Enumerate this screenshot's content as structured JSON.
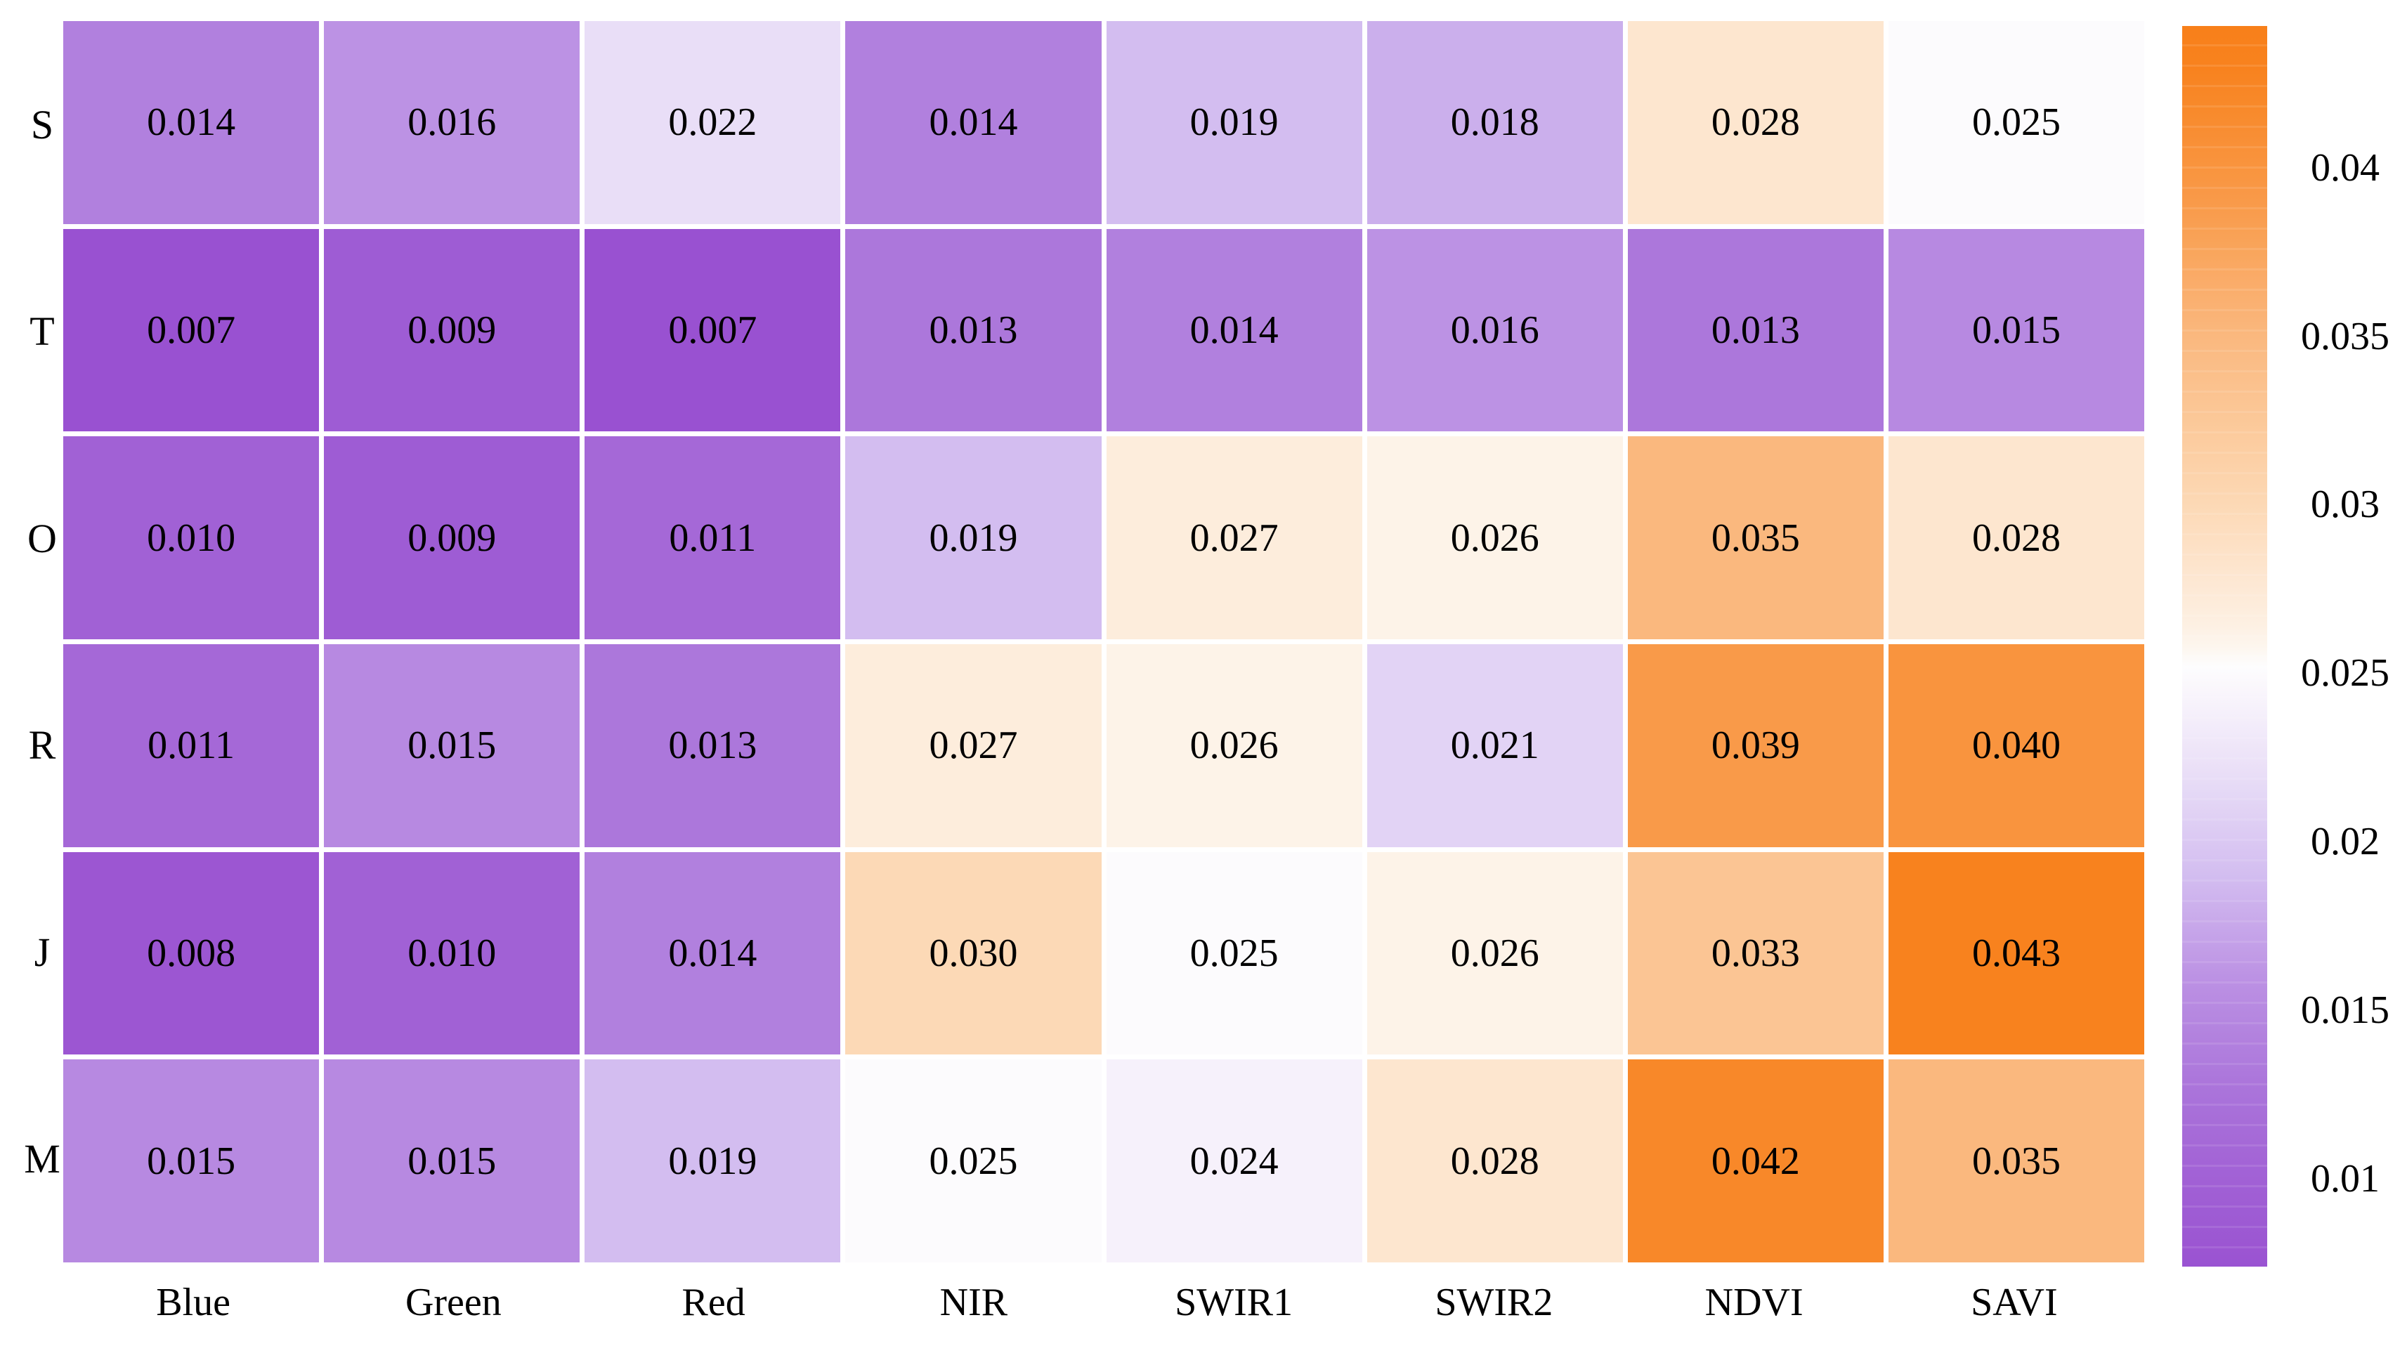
{
  "chart_data": {
    "type": "heatmap",
    "title": "",
    "rows": [
      "S",
      "T",
      "O",
      "R",
      "J",
      "M"
    ],
    "columns": [
      "Blue",
      "Green",
      "Red",
      "NIR",
      "SWIR1",
      "SWIR2",
      "NDVI",
      "SAVI"
    ],
    "values": [
      [
        0.014,
        0.016,
        0.022,
        0.014,
        0.019,
        0.018,
        0.028,
        0.025
      ],
      [
        0.007,
        0.009,
        0.007,
        0.013,
        0.014,
        0.016,
        0.013,
        0.015
      ],
      [
        0.01,
        0.009,
        0.011,
        0.019,
        0.027,
        0.026,
        0.035,
        0.028
      ],
      [
        0.011,
        0.015,
        0.013,
        0.027,
        0.026,
        0.021,
        0.039,
        0.04
      ],
      [
        0.008,
        0.01,
        0.014,
        0.03,
        0.025,
        0.026,
        0.033,
        0.043
      ],
      [
        0.015,
        0.015,
        0.019,
        0.025,
        0.024,
        0.028,
        0.042,
        0.035
      ]
    ],
    "value_decimals": 3,
    "grid_gap_color": "#ffffff",
    "text_color": "#000000",
    "colorbar": {
      "position": "right",
      "vmin": 0.0074,
      "vmax": 0.0442,
      "ticks": [
        0.04,
        0.035,
        0.03,
        0.025,
        0.02,
        0.015,
        0.01
      ],
      "tick_labels": [
        "0.04",
        "0.035",
        "0.03",
        "0.025",
        "0.02",
        "0.015",
        "0.01"
      ]
    },
    "colormap": {
      "name": "purple-white-orange-diverging",
      "purple_end": "#9951d1",
      "center": "#fefefe",
      "orange_end": "#f8821e",
      "stops": [
        [
          0.007,
          "#9951d1"
        ],
        [
          0.01,
          "#a161d5"
        ],
        [
          0.013,
          "#ac77db"
        ],
        [
          0.016,
          "#bc92e4"
        ],
        [
          0.019,
          "#d3bdf0"
        ],
        [
          0.022,
          "#e9def7"
        ],
        [
          0.024,
          "#f6f1fb"
        ],
        [
          0.0253,
          "#fefefe"
        ],
        [
          0.026,
          "#fdf3e8"
        ],
        [
          0.028,
          "#fde6cf"
        ],
        [
          0.031,
          "#fcd2a9"
        ],
        [
          0.035,
          "#fab87e"
        ],
        [
          0.039,
          "#f99a49"
        ],
        [
          0.043,
          "#f8821e"
        ],
        [
          0.045,
          "#f87e18"
        ]
      ]
    }
  }
}
